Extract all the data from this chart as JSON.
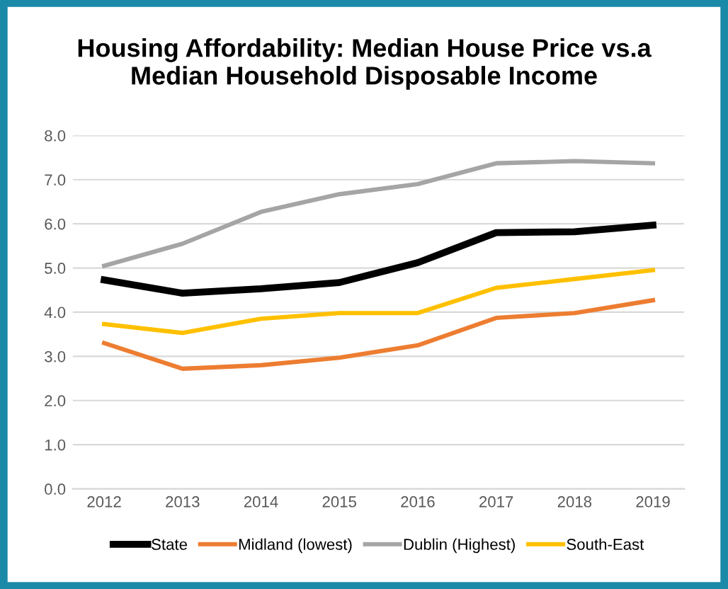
{
  "chart_data": {
    "type": "line",
    "title": "Housing Affordability: Median House Price vs.a\nMedian Household Disposable Income",
    "categories": [
      "2012",
      "2013",
      "2014",
      "2015",
      "2016",
      "2017",
      "2018",
      "2019"
    ],
    "series": [
      {
        "name": "State",
        "color": "#000000",
        "values": [
          4.73,
          4.43,
          4.53,
          4.67,
          5.12,
          5.8,
          5.82,
          5.97
        ]
      },
      {
        "name": "Midland (lowest)",
        "color": "#ed7d31",
        "values": [
          3.3,
          2.72,
          2.8,
          2.97,
          3.25,
          3.87,
          3.98,
          4.27
        ]
      },
      {
        "name": "Dublin (Highest)",
        "color": "#a5a5a5",
        "values": [
          5.05,
          5.55,
          6.27,
          6.67,
          6.9,
          7.37,
          7.42,
          7.37
        ]
      },
      {
        "name": "South-East",
        "color": "#ffc000",
        "values": [
          3.73,
          3.53,
          3.85,
          3.98,
          3.98,
          4.55,
          4.75,
          4.95
        ]
      }
    ],
    "ylim": [
      0,
      8
    ],
    "yticks": [
      {
        "value": 0,
        "label": "0.0"
      },
      {
        "value": 1,
        "label": "1.0"
      },
      {
        "value": 2,
        "label": "2.0"
      },
      {
        "value": 3,
        "label": "3.0"
      },
      {
        "value": 4,
        "label": "4.0"
      },
      {
        "value": 5,
        "label": "5.0"
      },
      {
        "value": 6,
        "label": "6.0"
      },
      {
        "value": 7,
        "label": "7.0"
      },
      {
        "value": 8,
        "label": "8.0"
      }
    ],
    "grid": "y",
    "legend": "bottom",
    "marker": "none",
    "line_style": "solid"
  }
}
